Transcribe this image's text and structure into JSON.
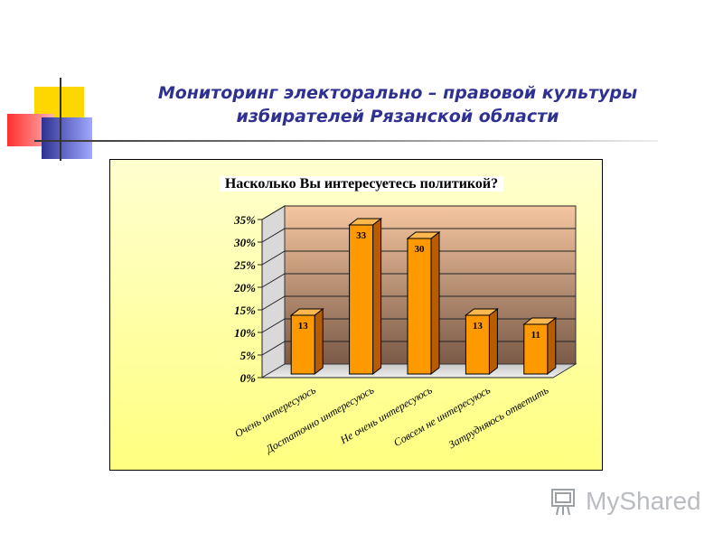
{
  "slide": {
    "title_line1": "Мониторинг электорально – правовой культуры",
    "title_line2": "избирателей Рязанской области"
  },
  "watermark": {
    "text": "MyShared"
  },
  "colors": {
    "bar": "#ff9900",
    "bar_side": "#b85c00",
    "bar_top": "#ffb84d",
    "title": "#2e3192"
  },
  "chart_data": {
    "type": "bar",
    "title": "Насколько Вы интересуетесь политикой?",
    "categories": [
      "Очень интересуюсь",
      "Достаточно интересуюсь",
      "Не очень интересуюсь",
      "Совсем не интересуюсь",
      "Затрудняюсь ответить"
    ],
    "values": [
      13,
      33,
      30,
      13,
      11
    ],
    "data_labels": [
      "13",
      "33",
      "30",
      "13",
      "11"
    ],
    "ylim": [
      0,
      35
    ],
    "yticks": [
      "0%",
      "5%",
      "10%",
      "15%",
      "20%",
      "25%",
      "30%",
      "35%"
    ],
    "ytick_values": [
      0,
      5,
      10,
      15,
      20,
      25,
      30,
      35
    ],
    "grid": true,
    "legend": "none"
  }
}
